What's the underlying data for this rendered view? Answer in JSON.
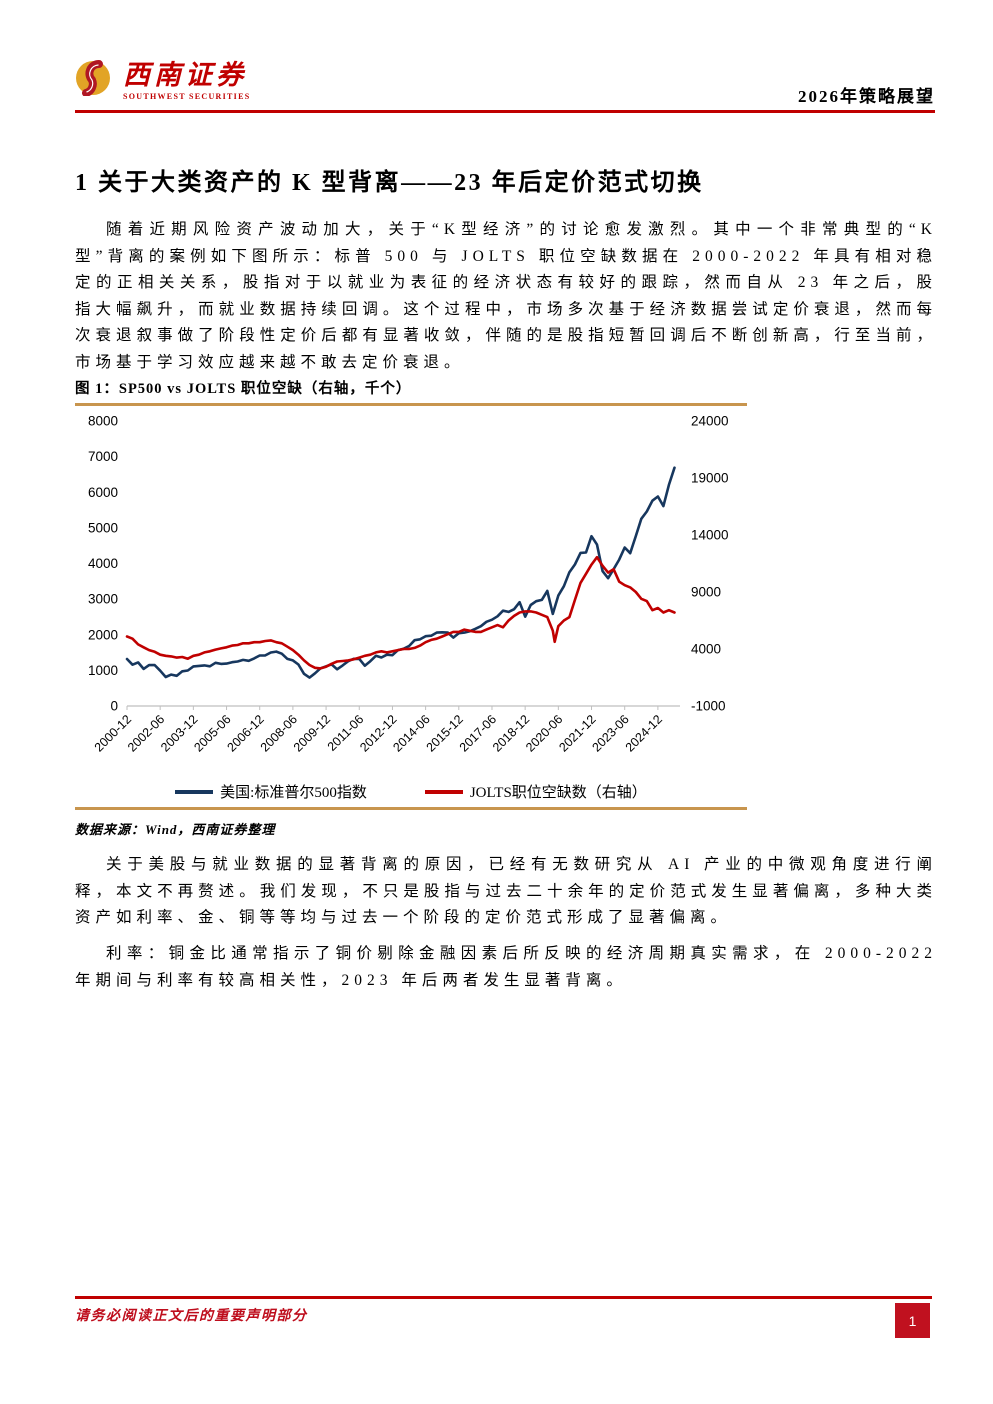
{
  "header": {
    "logo_cn": "西南证券",
    "logo_en": "SOUTHWEST SECURITIES",
    "right_title": "2026年策略展望"
  },
  "section": {
    "heading": "1 关于大类资产的 K 型背离——23 年后定价范式切换",
    "para1": "随着近期风险资产波动加大，关于“K型经济”的讨论愈发激烈。其中一个非常典型的“K型”背离的案例如下图所示：标普 500 与 JOLTS 职位空缺数据在 2000-2022 年具有相对稳定的正相关关系，股指对于以就业为表征的经济状态有较好的跟踪，然而自从 23 年之后，股指大幅飙升，而就业数据持续回调。这个过程中，市场多次基于经济数据尝试定价衰退，然而每次衰退叙事做了阶段性定价后都有显著收敛，伴随的是股指短暂回调后不断创新高，行至当前，市场基于学习效应越来越不敢去定价衰退。",
    "para2": "关于美股与就业数据的显著背离的原因，已经有无数研究从 AI 产业的中微观角度进行阐释，本文不再赘述。我们发现，不只是股指与过去二十余年的定价范式发生显著偏离，多种大类资产如利率、金、铜等等均与过去一个阶段的定价范式形成了显著偏离。",
    "para3": "利率：铜金比通常指示了铜价剔除金融因素后所反映的经济周期真实需求，在 2000-2022 年期间与利率有较高相关性，2023 年后两者发生显著背离。"
  },
  "figure": {
    "title": "图 1：SP500 vs JOLTS 职位空缺（右轴，千个）",
    "source": "数据来源：Wind，西南证券整理"
  },
  "footer": {
    "disclaimer": "请务必阅读正文后的重要声明部分",
    "page_number": "1"
  },
  "colors": {
    "brand_red": "#C00000",
    "footer_red": "#BE0D1C",
    "gold_rule": "#C8954E",
    "sp500_line": "#17375E",
    "jolts_line": "#C00000",
    "axis_gray": "#BFBFBF"
  },
  "chart_data": {
    "type": "line",
    "title": "SP500 vs JOLTS 职位空缺（右轴，千个）",
    "grid": false,
    "legend_position": "bottom",
    "x_unit": "months since 2000-12",
    "x_domain": [
      0,
      300
    ],
    "x_ticks": [
      {
        "pos": 0,
        "label": "2000-12"
      },
      {
        "pos": 18,
        "label": "2002-06"
      },
      {
        "pos": 36,
        "label": "2003-12"
      },
      {
        "pos": 54,
        "label": "2005-06"
      },
      {
        "pos": 72,
        "label": "2006-12"
      },
      {
        "pos": 90,
        "label": "2008-06"
      },
      {
        "pos": 108,
        "label": "2009-12"
      },
      {
        "pos": 126,
        "label": "2011-06"
      },
      {
        "pos": 144,
        "label": "2012-12"
      },
      {
        "pos": 162,
        "label": "2014-06"
      },
      {
        "pos": 180,
        "label": "2015-12"
      },
      {
        "pos": 198,
        "label": "2017-06"
      },
      {
        "pos": 216,
        "label": "2018-12"
      },
      {
        "pos": 234,
        "label": "2020-06"
      },
      {
        "pos": 252,
        "label": "2021-12"
      },
      {
        "pos": 270,
        "label": "2023-06"
      },
      {
        "pos": 288,
        "label": "2024-12"
      }
    ],
    "left_axis": {
      "min": 0,
      "max": 8000,
      "ticks": [
        0,
        1000,
        2000,
        3000,
        4000,
        5000,
        6000,
        7000,
        8000
      ]
    },
    "right_axis": {
      "min": -1000,
      "max": 24000,
      "ticks": [
        -1000,
        4000,
        9000,
        14000,
        19000,
        24000
      ]
    },
    "series": [
      {
        "name": "美国:标准普尔500指数",
        "axis": "left",
        "color": "#17375E",
        "points": [
          [
            0,
            1320
          ],
          [
            3,
            1160
          ],
          [
            6,
            1224
          ],
          [
            9,
            1041
          ],
          [
            12,
            1148
          ],
          [
            15,
            1147
          ],
          [
            18,
            990
          ],
          [
            21,
            815
          ],
          [
            24,
            880
          ],
          [
            27,
            848
          ],
          [
            30,
            975
          ],
          [
            33,
            996
          ],
          [
            36,
            1112
          ],
          [
            39,
            1126
          ],
          [
            42,
            1141
          ],
          [
            45,
            1115
          ],
          [
            48,
            1212
          ],
          [
            51,
            1181
          ],
          [
            54,
            1191
          ],
          [
            57,
            1229
          ],
          [
            60,
            1248
          ],
          [
            63,
            1295
          ],
          [
            66,
            1270
          ],
          [
            69,
            1336
          ],
          [
            72,
            1418
          ],
          [
            75,
            1421
          ],
          [
            78,
            1503
          ],
          [
            81,
            1527
          ],
          [
            84,
            1468
          ],
          [
            87,
            1323
          ],
          [
            90,
            1280
          ],
          [
            93,
            1166
          ],
          [
            96,
            903
          ],
          [
            99,
            798
          ],
          [
            102,
            919
          ],
          [
            105,
            1057
          ],
          [
            108,
            1115
          ],
          [
            111,
            1169
          ],
          [
            114,
            1031
          ],
          [
            117,
            1141
          ],
          [
            120,
            1258
          ],
          [
            123,
            1326
          ],
          [
            126,
            1321
          ],
          [
            129,
            1131
          ],
          [
            132,
            1258
          ],
          [
            135,
            1408
          ],
          [
            138,
            1362
          ],
          [
            141,
            1441
          ],
          [
            144,
            1426
          ],
          [
            147,
            1569
          ],
          [
            150,
            1606
          ],
          [
            153,
            1682
          ],
          [
            156,
            1848
          ],
          [
            159,
            1872
          ],
          [
            162,
            1960
          ],
          [
            165,
            1972
          ],
          [
            168,
            2059
          ],
          [
            171,
            2068
          ],
          [
            174,
            2063
          ],
          [
            177,
            1920
          ],
          [
            180,
            2044
          ],
          [
            183,
            2060
          ],
          [
            186,
            2099
          ],
          [
            189,
            2168
          ],
          [
            192,
            2239
          ],
          [
            195,
            2363
          ],
          [
            198,
            2423
          ],
          [
            201,
            2519
          ],
          [
            204,
            2674
          ],
          [
            207,
            2641
          ],
          [
            210,
            2718
          ],
          [
            213,
            2914
          ],
          [
            216,
            2507
          ],
          [
            219,
            2834
          ],
          [
            222,
            2942
          ],
          [
            225,
            2977
          ],
          [
            228,
            3231
          ],
          [
            231,
            2585
          ],
          [
            234,
            3100
          ],
          [
            237,
            3363
          ],
          [
            240,
            3756
          ],
          [
            243,
            3973
          ],
          [
            246,
            4298
          ],
          [
            249,
            4308
          ],
          [
            252,
            4766
          ],
          [
            255,
            4530
          ],
          [
            258,
            3785
          ],
          [
            261,
            3586
          ],
          [
            264,
            3840
          ],
          [
            267,
            4109
          ],
          [
            270,
            4450
          ],
          [
            273,
            4288
          ],
          [
            276,
            4770
          ],
          [
            279,
            5254
          ],
          [
            282,
            5460
          ],
          [
            285,
            5762
          ],
          [
            288,
            5882
          ],
          [
            291,
            5612
          ],
          [
            294,
            6205
          ],
          [
            297,
            6688
          ]
        ]
      },
      {
        "name": "JOLTS职位空缺数（右轴）",
        "axis": "right",
        "color": "#C00000",
        "points": [
          [
            0,
            5100
          ],
          [
            3,
            4900
          ],
          [
            6,
            4400
          ],
          [
            9,
            4150
          ],
          [
            12,
            3900
          ],
          [
            15,
            3750
          ],
          [
            18,
            3500
          ],
          [
            21,
            3400
          ],
          [
            24,
            3350
          ],
          [
            27,
            3250
          ],
          [
            30,
            3300
          ],
          [
            33,
            3150
          ],
          [
            36,
            3400
          ],
          [
            39,
            3500
          ],
          [
            42,
            3700
          ],
          [
            45,
            3800
          ],
          [
            48,
            3950
          ],
          [
            51,
            4050
          ],
          [
            54,
            4150
          ],
          [
            57,
            4300
          ],
          [
            60,
            4350
          ],
          [
            63,
            4500
          ],
          [
            66,
            4500
          ],
          [
            69,
            4600
          ],
          [
            72,
            4600
          ],
          [
            75,
            4700
          ],
          [
            78,
            4750
          ],
          [
            81,
            4600
          ],
          [
            84,
            4500
          ],
          [
            87,
            4200
          ],
          [
            90,
            3900
          ],
          [
            93,
            3500
          ],
          [
            96,
            3000
          ],
          [
            99,
            2600
          ],
          [
            102,
            2350
          ],
          [
            105,
            2300
          ],
          [
            108,
            2450
          ],
          [
            111,
            2700
          ],
          [
            114,
            2900
          ],
          [
            117,
            2950
          ],
          [
            120,
            3000
          ],
          [
            123,
            3100
          ],
          [
            126,
            3250
          ],
          [
            129,
            3400
          ],
          [
            132,
            3500
          ],
          [
            135,
            3700
          ],
          [
            138,
            3800
          ],
          [
            141,
            3700
          ],
          [
            144,
            3800
          ],
          [
            147,
            3900
          ],
          [
            150,
            4000
          ],
          [
            153,
            4000
          ],
          [
            156,
            4100
          ],
          [
            159,
            4300
          ],
          [
            162,
            4600
          ],
          [
            165,
            4800
          ],
          [
            168,
            4900
          ],
          [
            171,
            5100
          ],
          [
            174,
            5300
          ],
          [
            177,
            5500
          ],
          [
            180,
            5500
          ],
          [
            183,
            5700
          ],
          [
            186,
            5600
          ],
          [
            189,
            5500
          ],
          [
            192,
            5500
          ],
          [
            195,
            5700
          ],
          [
            198,
            5900
          ],
          [
            201,
            6100
          ],
          [
            204,
            5900
          ],
          [
            207,
            6500
          ],
          [
            210,
            6900
          ],
          [
            213,
            7200
          ],
          [
            216,
            7300
          ],
          [
            219,
            7300
          ],
          [
            222,
            7200
          ],
          [
            225,
            7000
          ],
          [
            228,
            6800
          ],
          [
            231,
            5608
          ],
          [
            232,
            4630
          ],
          [
            234,
            6000
          ],
          [
            237,
            6500
          ],
          [
            240,
            6800
          ],
          [
            243,
            8300
          ],
          [
            246,
            9800
          ],
          [
            249,
            10600
          ],
          [
            252,
            11400
          ],
          [
            255,
            12050
          ],
          [
            258,
            11300
          ],
          [
            261,
            10700
          ],
          [
            264,
            11000
          ],
          [
            267,
            9900
          ],
          [
            270,
            9600
          ],
          [
            273,
            9400
          ],
          [
            276,
            9000
          ],
          [
            279,
            8400
          ],
          [
            282,
            8200
          ],
          [
            285,
            7400
          ],
          [
            288,
            7600
          ],
          [
            291,
            7200
          ],
          [
            294,
            7400
          ],
          [
            297,
            7200
          ]
        ]
      }
    ]
  }
}
